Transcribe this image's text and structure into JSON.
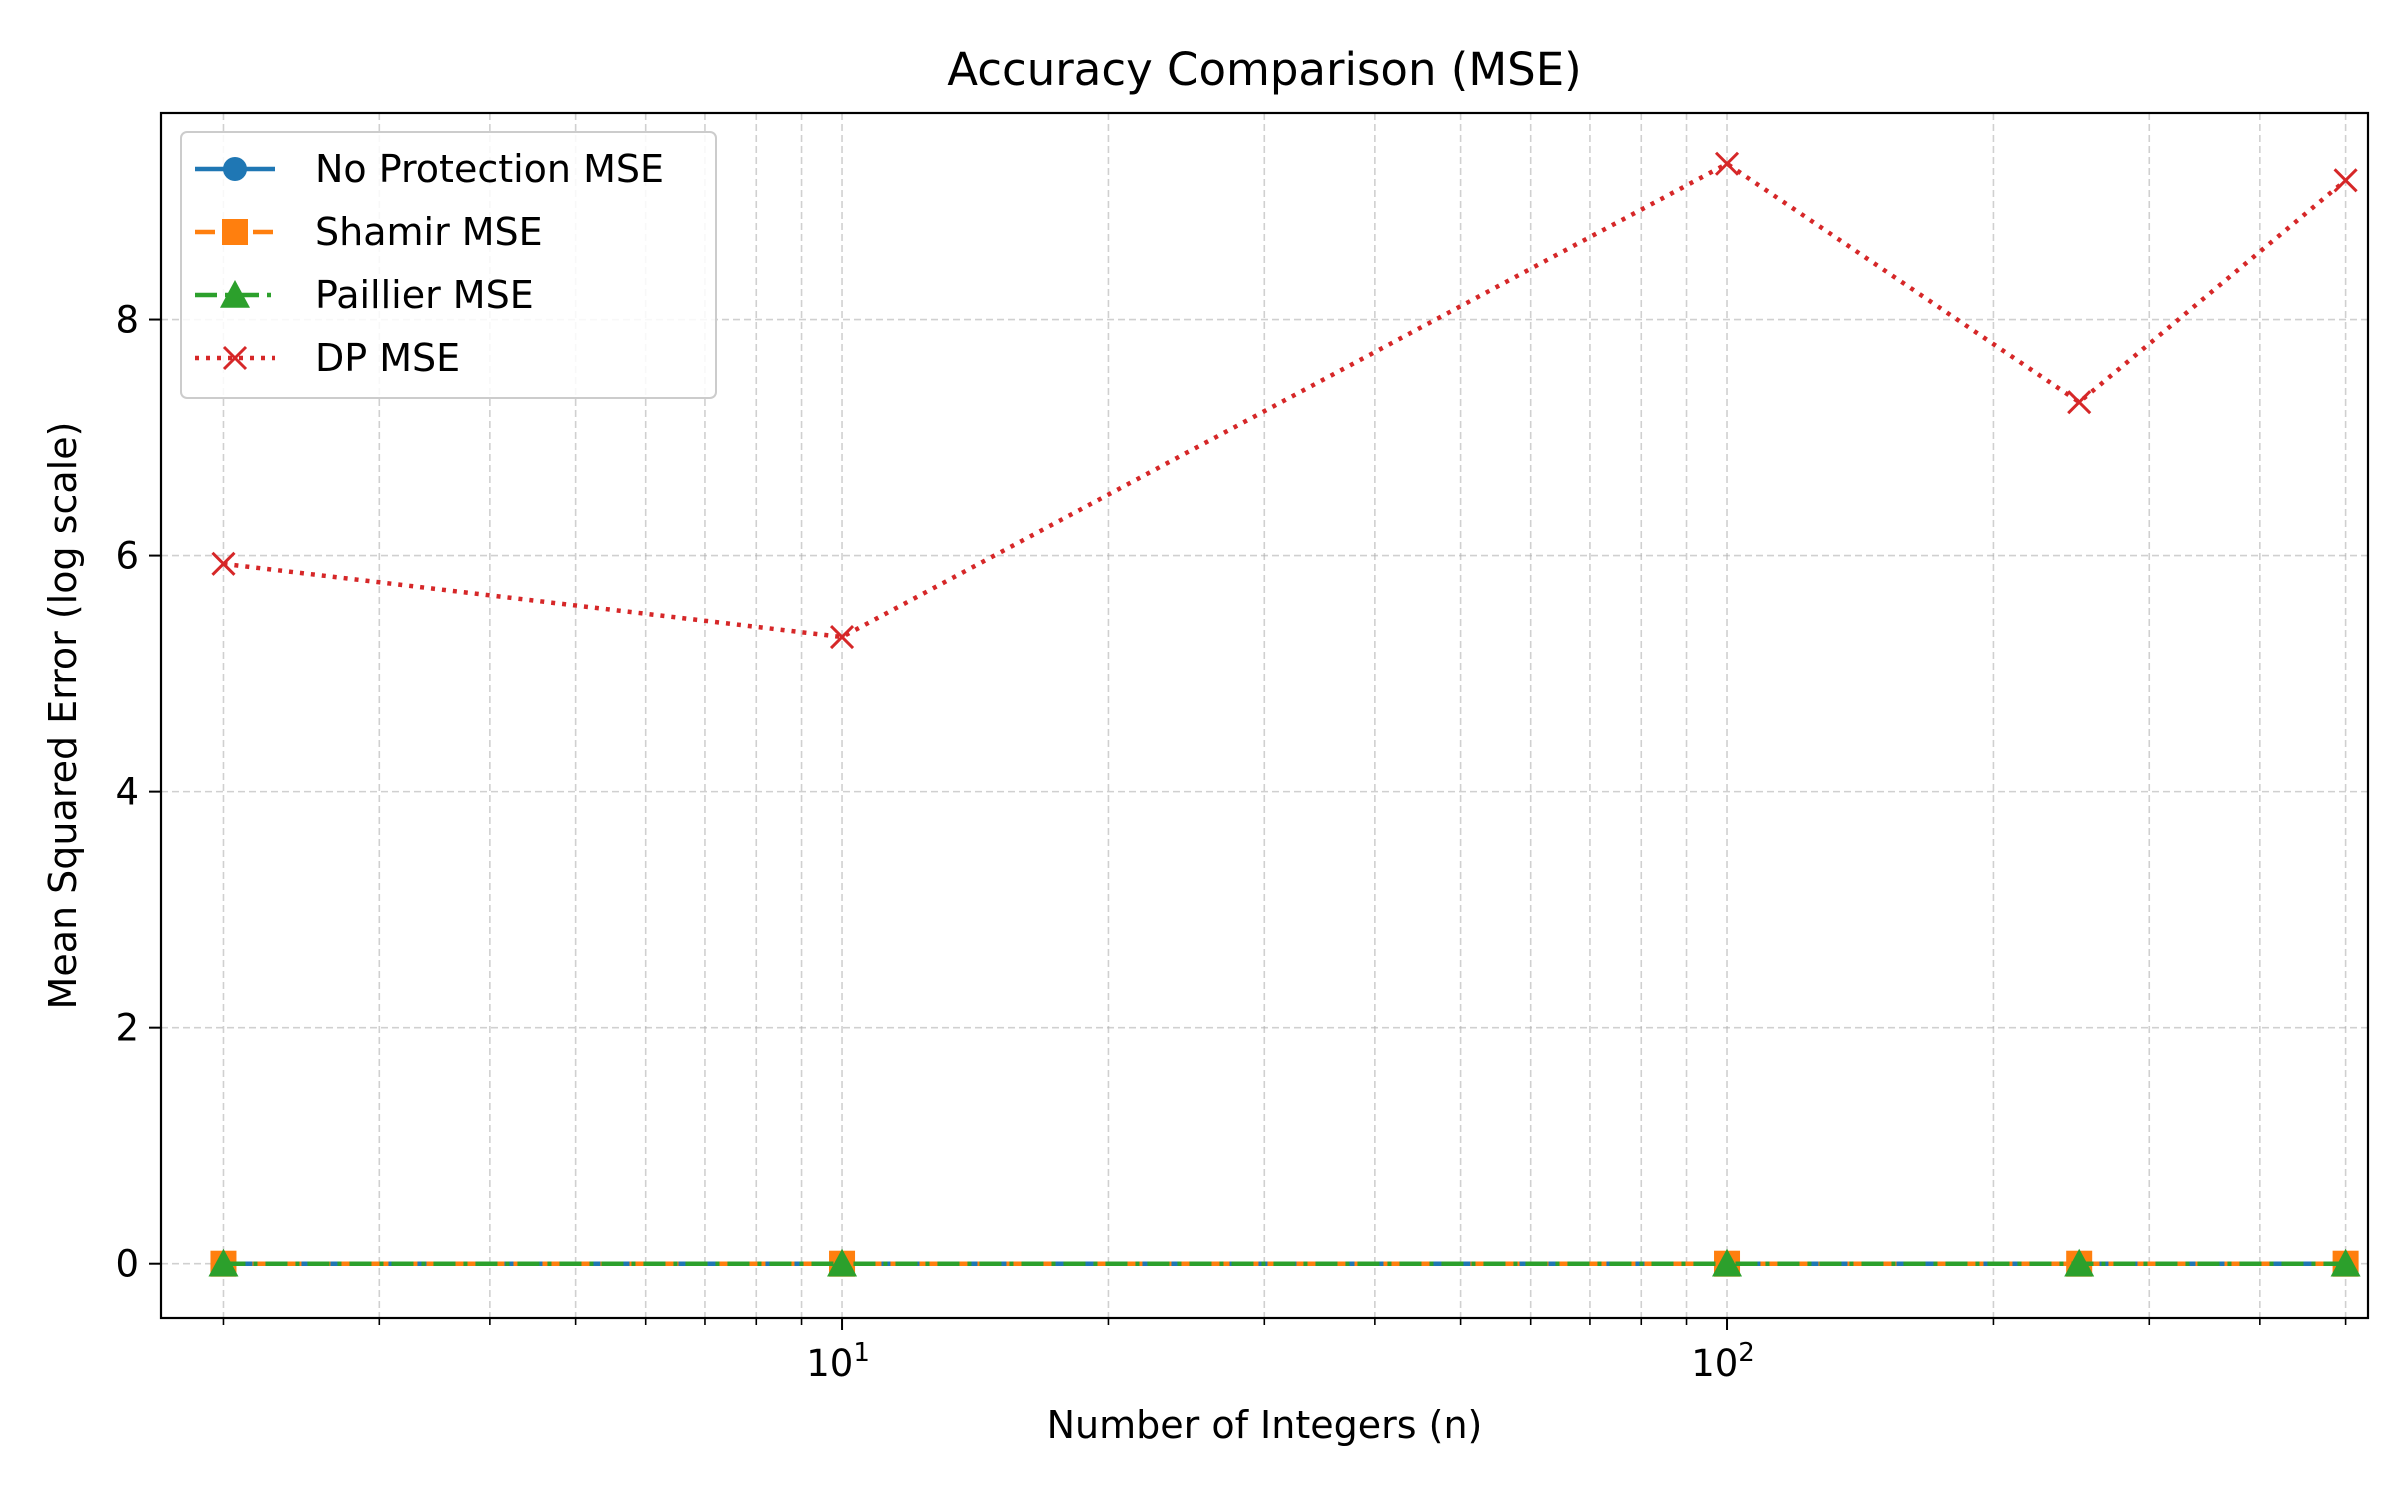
{
  "chart_data": {
    "type": "line",
    "title": "Accuracy Comparison (MSE)",
    "xlabel": "Number of Integers (n)",
    "ylabel": "Mean Squared Error (log scale)",
    "x_scale": "log",
    "xlim": [
      1.7,
      530
    ],
    "ylim": [
      -0.46,
      9.75
    ],
    "x_ticks": [
      {
        "value": 10,
        "base": "10",
        "exp": "1"
      },
      {
        "value": 100,
        "base": "10",
        "exp": "2"
      }
    ],
    "y_ticks": [
      {
        "value": 0,
        "label": "0"
      },
      {
        "value": 2,
        "label": "2"
      },
      {
        "value": 4,
        "label": "4"
      },
      {
        "value": 6,
        "label": "6"
      },
      {
        "value": 8,
        "label": "8"
      }
    ],
    "grid": true,
    "legend_position": "upper-left",
    "x": [
      2,
      10,
      100,
      250,
      500
    ],
    "series": [
      {
        "name": "No Protection MSE",
        "values": [
          0,
          0,
          0,
          0,
          0
        ],
        "color": "#1f77b4",
        "marker": "circle",
        "linestyle": "solid"
      },
      {
        "name": "Shamir MSE",
        "values": [
          0,
          0,
          0,
          0,
          0
        ],
        "color": "#ff7f0e",
        "marker": "square",
        "linestyle": "dashed"
      },
      {
        "name": "Paillier MSE",
        "values": [
          0,
          0,
          0,
          0,
          0
        ],
        "color": "#2ca02c",
        "marker": "triangle",
        "linestyle": "dashdot"
      },
      {
        "name": "DP MSE",
        "values": [
          5.93,
          5.31,
          9.32,
          7.3,
          9.18
        ],
        "color": "#d62728",
        "marker": "x",
        "linestyle": "dotted"
      }
    ]
  }
}
